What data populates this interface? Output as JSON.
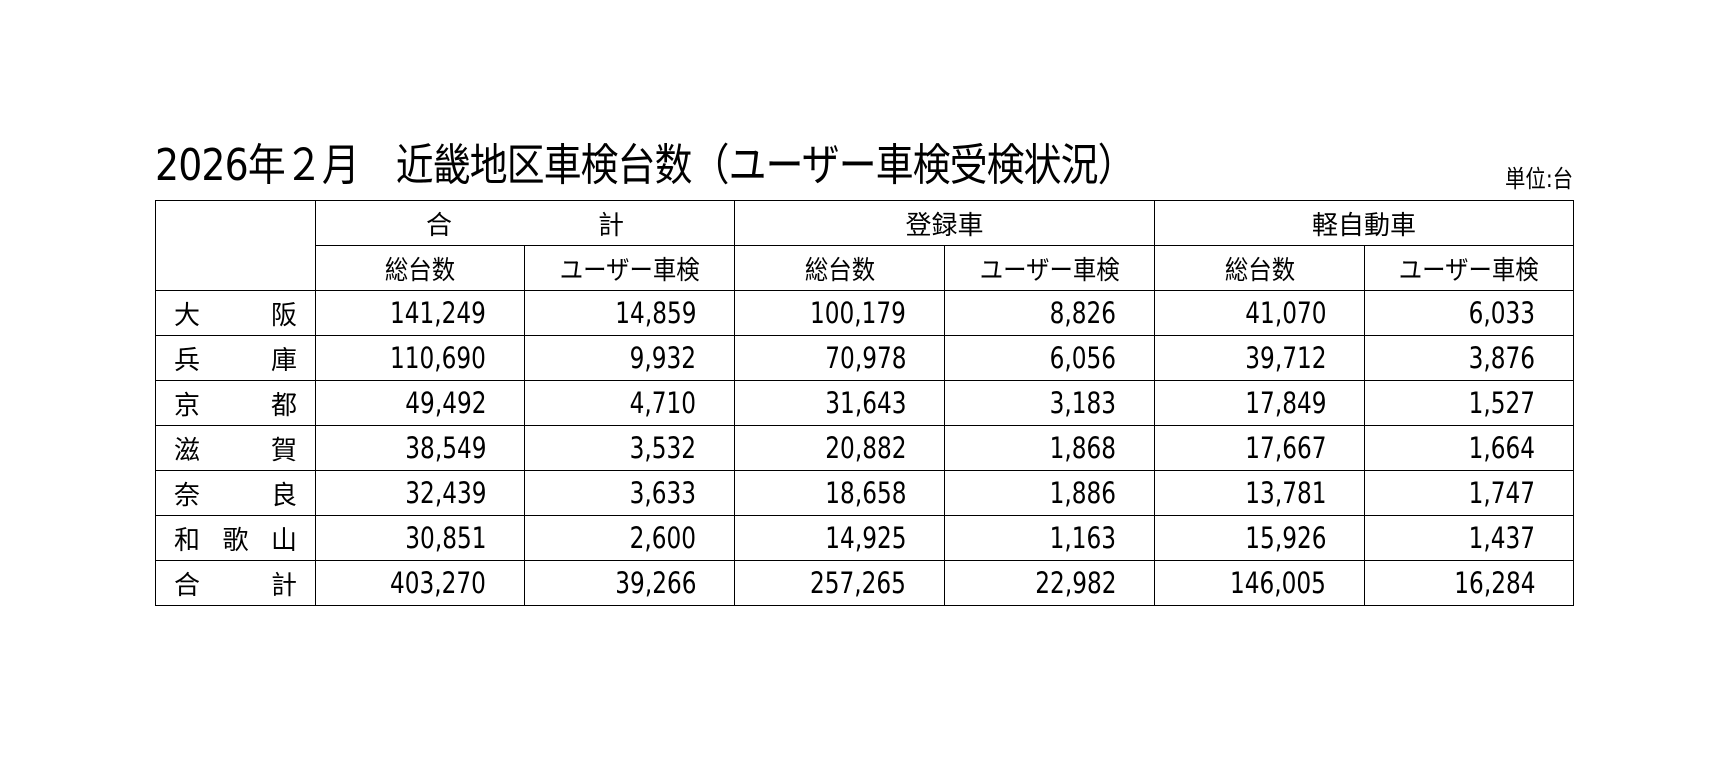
{
  "title": "2026年２月　近畿地区車検台数（ユーザー車検受検状況）",
  "unit_label": "単位:台",
  "table": {
    "group_headers": [
      "合　計",
      "登録車",
      "軽自動車"
    ],
    "sub_headers": [
      "総台数",
      "ユーザー車検",
      "総台数",
      "ユーザー車検",
      "総台数",
      "ユーザー車検"
    ],
    "rows": [
      {
        "name": [
          "大",
          "阪"
        ],
        "values": [
          "141,249",
          "14,859",
          "100,179",
          "8,826",
          "41,070",
          "6,033"
        ]
      },
      {
        "name": [
          "兵",
          "庫"
        ],
        "values": [
          "110,690",
          "9,932",
          "70,978",
          "6,056",
          "39,712",
          "3,876"
        ]
      },
      {
        "name": [
          "京",
          "都"
        ],
        "values": [
          "49,492",
          "4,710",
          "31,643",
          "3,183",
          "17,849",
          "1,527"
        ]
      },
      {
        "name": [
          "滋",
          "賀"
        ],
        "values": [
          "38,549",
          "3,532",
          "20,882",
          "1,868",
          "17,667",
          "1,664"
        ]
      },
      {
        "name": [
          "奈",
          "良"
        ],
        "values": [
          "32,439",
          "3,633",
          "18,658",
          "1,886",
          "13,781",
          "1,747"
        ]
      },
      {
        "name": [
          "和",
          "歌",
          "山"
        ],
        "values": [
          "30,851",
          "2,600",
          "14,925",
          "1,163",
          "15,926",
          "1,437"
        ]
      },
      {
        "name": [
          "合",
          "計"
        ],
        "values": [
          "403,270",
          "39,266",
          "257,265",
          "22,982",
          "146,005",
          "16,284"
        ]
      }
    ]
  }
}
